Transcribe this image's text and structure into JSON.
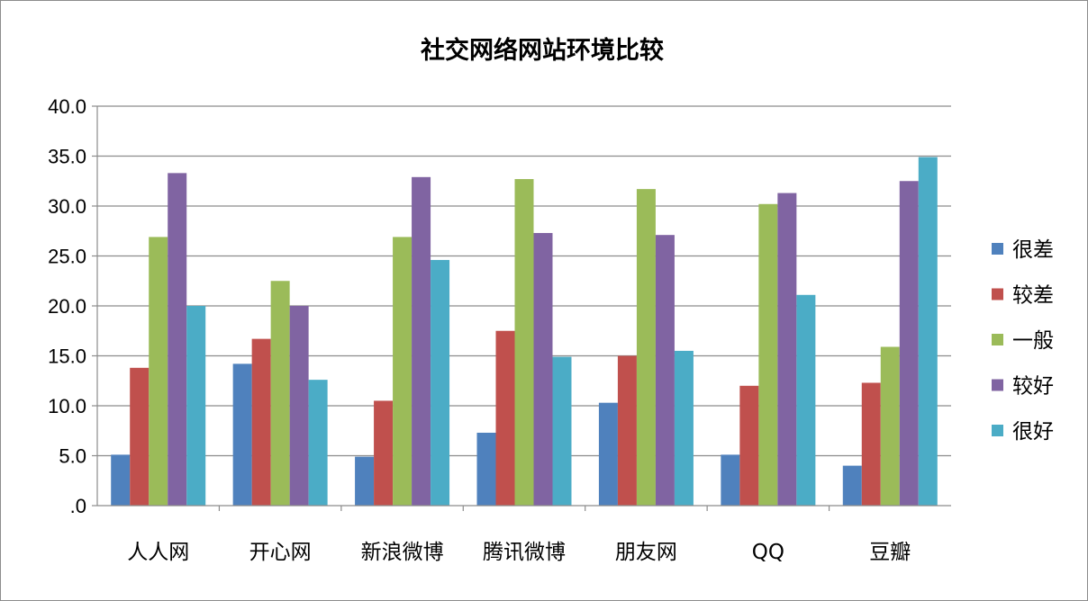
{
  "chart_data": {
    "type": "bar",
    "title": "社交网络网站环境比较",
    "xlabel": "",
    "ylabel": "",
    "ylim": [
      0,
      40
    ],
    "y_ticks": [
      ".0",
      "5.0",
      "10.0",
      "15.0",
      "20.0",
      "25.0",
      "30.0",
      "35.0",
      "40.0"
    ],
    "grid": true,
    "legend_position": "right",
    "categories": [
      "人人网",
      "开心网",
      "新浪微博",
      "腾讯微博",
      "朋友网",
      "QQ",
      "豆瓣"
    ],
    "series": [
      {
        "name": "很差",
        "color": "#4f81bd",
        "values": [
          5.1,
          14.2,
          4.9,
          7.3,
          10.3,
          5.1,
          4.0
        ]
      },
      {
        "name": "较差",
        "color": "#c0504d",
        "values": [
          13.8,
          16.7,
          10.5,
          17.5,
          15.0,
          12.0,
          12.3
        ]
      },
      {
        "name": "一般",
        "color": "#9bbb59",
        "values": [
          26.9,
          22.5,
          26.9,
          32.7,
          31.7,
          30.2,
          15.9
        ]
      },
      {
        "name": "较好",
        "color": "#8064a2",
        "values": [
          33.3,
          20.0,
          32.9,
          27.3,
          27.1,
          31.3,
          32.5
        ]
      },
      {
        "name": "很好",
        "color": "#4bacc6",
        "values": [
          20.0,
          12.6,
          24.6,
          14.9,
          15.5,
          21.1,
          34.9
        ]
      }
    ]
  }
}
